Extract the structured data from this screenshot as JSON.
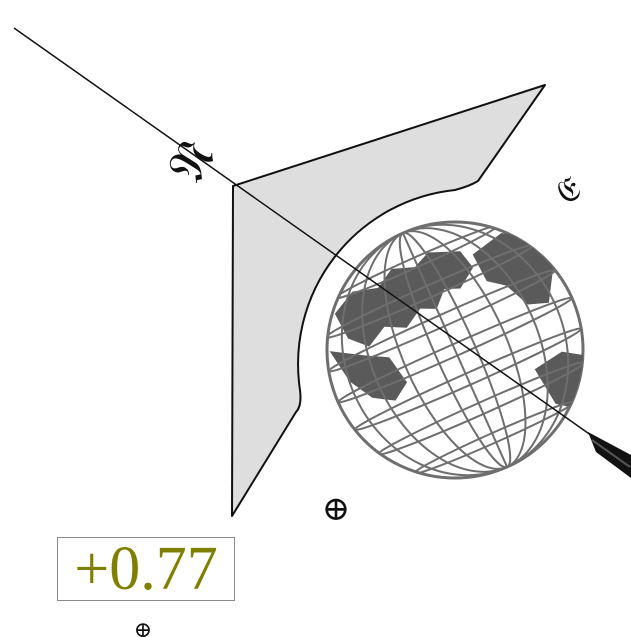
{
  "diagram": {
    "readout_value": "+0.77",
    "ink_color": "#111111",
    "fill_color": "#dedede",
    "grid_color": "#6e6e6e",
    "land_color": "#5a5a5a",
    "readout_color": "#808000",
    "glyph_top_left": "𝔑",
    "glyph_right": "𝔈",
    "glyph_bottom": "⊕",
    "glyph_bottom_edge": "⊕"
  }
}
